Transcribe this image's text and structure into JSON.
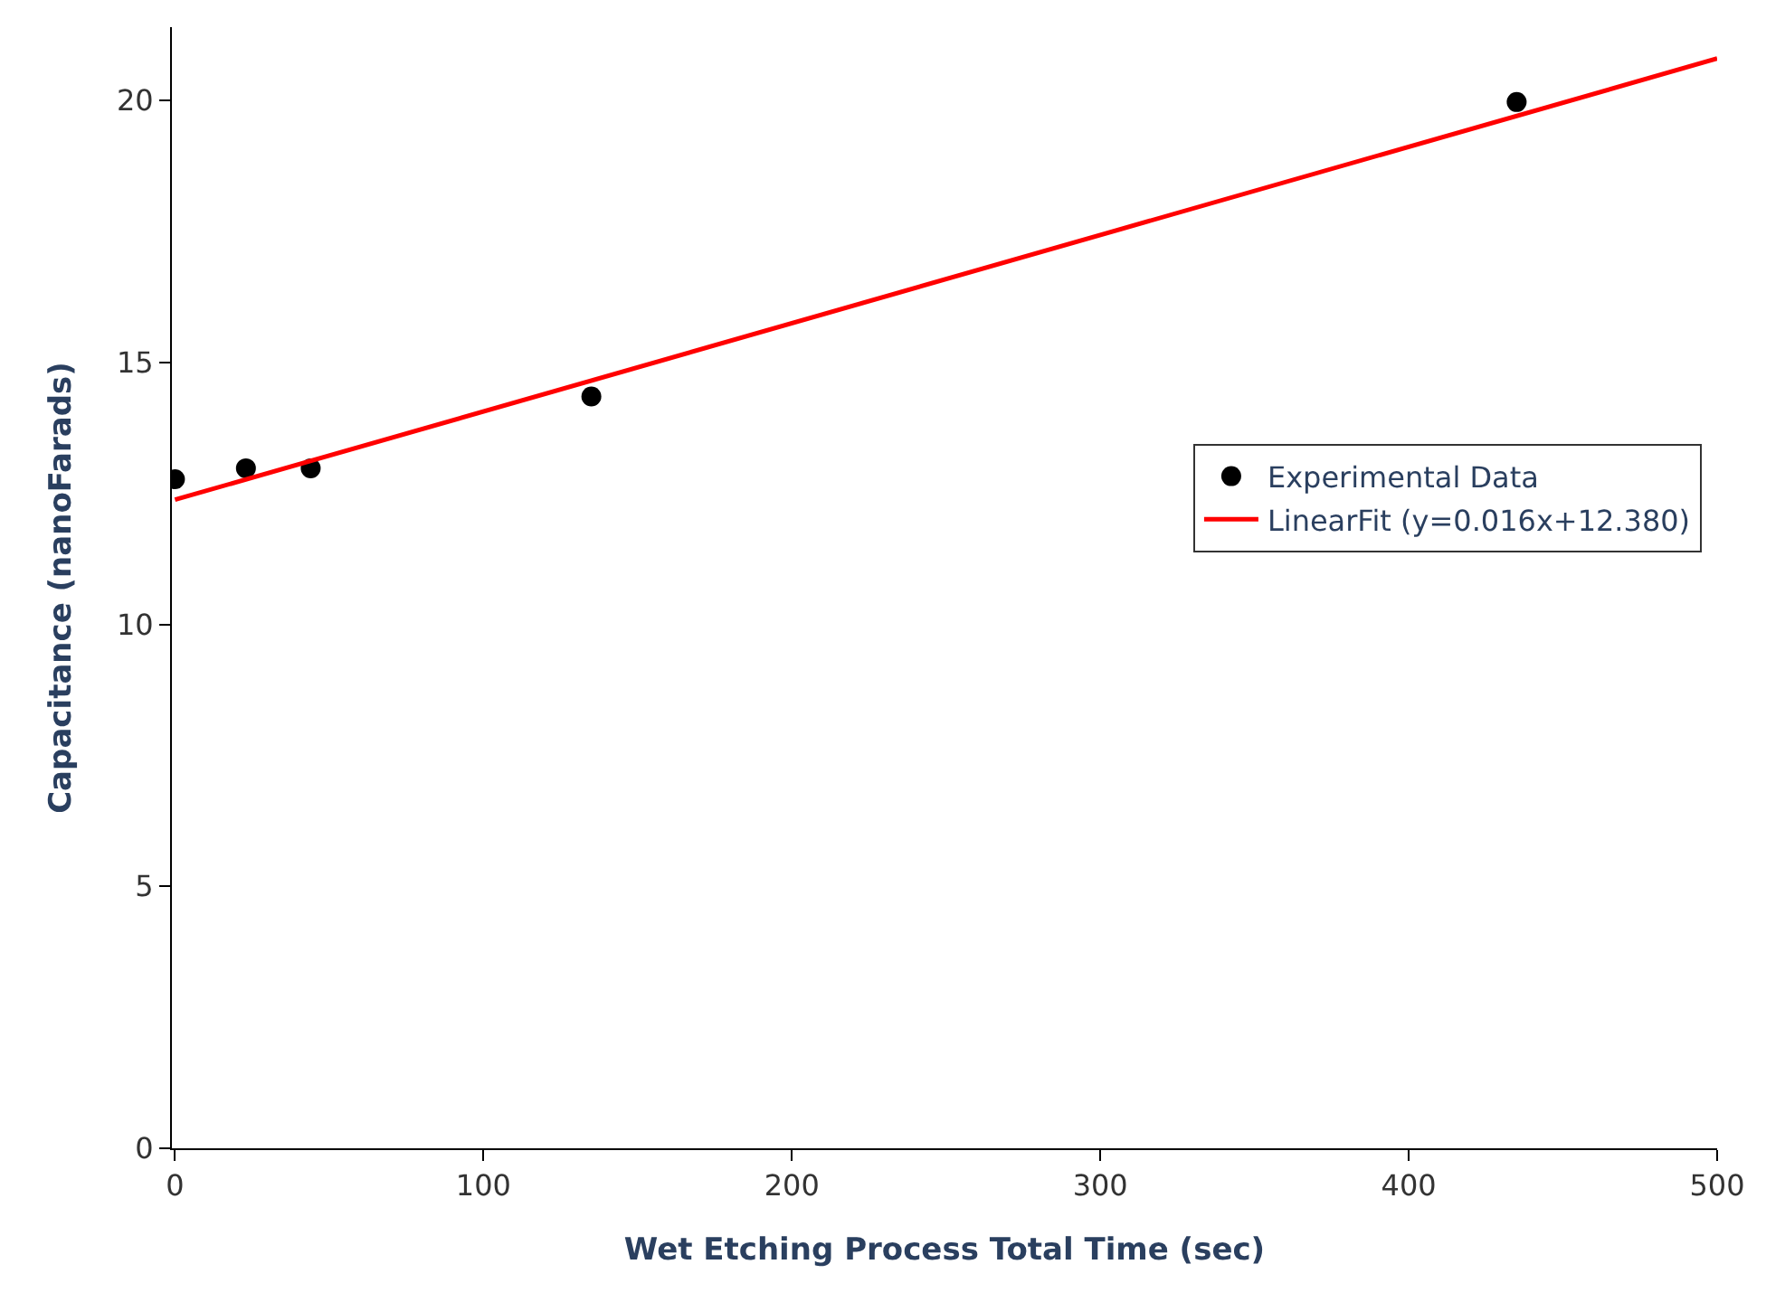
{
  "chart_data": {
    "type": "scatter",
    "xlabel": "Wet Etching Process Total Time (sec)",
    "ylabel": "Capacitance (nanoFarads)",
    "xlim": [
      -1,
      500
    ],
    "ylim": [
      0,
      21.4
    ],
    "xticks": [
      0,
      100,
      200,
      300,
      400,
      500
    ],
    "yticks": [
      0,
      5,
      10,
      15,
      20
    ],
    "legend": "right",
    "series": [
      {
        "name": "Experimental Data",
        "color": "#000000",
        "marker": "circle",
        "x": [
          0,
          23,
          44,
          135,
          435
        ],
        "values": [
          12.77,
          12.98,
          12.98,
          14.35,
          19.97
        ]
      },
      {
        "name": "LinearFit (y=0.016x+12.380)",
        "color": "#ff0000",
        "type": "line",
        "line_style": "solid",
        "x": [
          0,
          500
        ],
        "values": [
          12.38,
          20.8
        ]
      }
    ]
  }
}
